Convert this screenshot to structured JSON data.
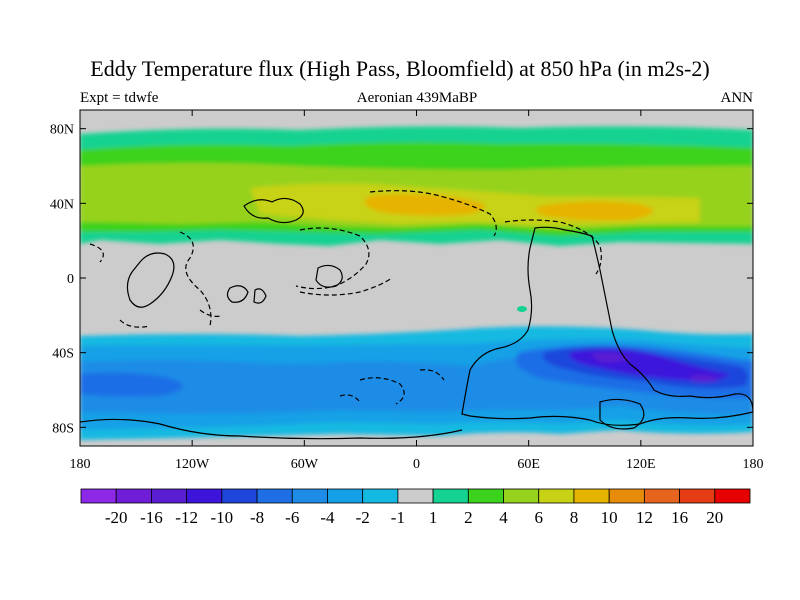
{
  "title": "Eddy Temperature flux (High Pass, Bloomfield) at 850 hPa (in m2s-2)",
  "subtitle_left": "Expt = tdwfe",
  "subtitle_center": "Aeronian 439MaBP",
  "subtitle_right": "ANN",
  "map": {
    "projection": "cylindrical-equidistant",
    "lon_range": [
      -180,
      180
    ],
    "lat_range": [
      -90,
      90
    ],
    "x_ticks": [
      {
        "value": -180,
        "label": "180"
      },
      {
        "value": -120,
        "label": "120W"
      },
      {
        "value": -60,
        "label": "60W"
      },
      {
        "value": 0,
        "label": "0"
      },
      {
        "value": 60,
        "label": "60E"
      },
      {
        "value": 120,
        "label": "120E"
      },
      {
        "value": 180,
        "label": "180"
      }
    ],
    "y_ticks": [
      {
        "value": 80,
        "label": "80N"
      },
      {
        "value": 40,
        "label": "40N"
      },
      {
        "value": 0,
        "label": "0"
      },
      {
        "value": -40,
        "label": "40S"
      },
      {
        "value": -80,
        "label": "80S"
      }
    ],
    "background_color": "#cccccc"
  },
  "colorbar": {
    "colors": [
      "#8c28e6",
      "#6e1ed7",
      "#5a1ed2",
      "#3c14dc",
      "#1e46dc",
      "#1e6ee6",
      "#1e8ce6",
      "#14a0e6",
      "#14b9e1",
      "#cccccc",
      "#14d291",
      "#3cd21e",
      "#96d21e",
      "#c8d214",
      "#e6b400",
      "#e68c0a",
      "#e6641e",
      "#e63c14",
      "#e60000"
    ],
    "labels": [
      "-20",
      "-16",
      "-12",
      "-10",
      "-8",
      "-6",
      "-4",
      "-2",
      "-1",
      "1",
      "2",
      "4",
      "6",
      "8",
      "10",
      "12",
      "16",
      "20"
    ]
  }
}
